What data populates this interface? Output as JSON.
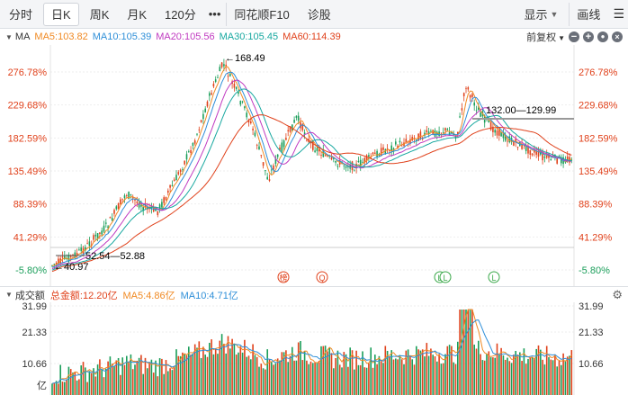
{
  "tabs": [
    {
      "label": "分时",
      "active": false
    },
    {
      "label": "日K",
      "active": true
    },
    {
      "label": "周K",
      "active": false
    },
    {
      "label": "月K",
      "active": false
    },
    {
      "label": "120分",
      "active": false
    },
    {
      "label": "•••",
      "active": false
    },
    {
      "label": "同花顺F10",
      "active": false
    },
    {
      "label": "诊股",
      "active": false
    }
  ],
  "right_tabs": {
    "display": "显示",
    "draw": "画线"
  },
  "ma_legend": {
    "title": "MA",
    "items": [
      {
        "label": "MA5:103.82",
        "color": "#f08a24"
      },
      {
        "label": "MA10:105.39",
        "color": "#2f8fd8"
      },
      {
        "label": "MA20:105.56",
        "color": "#c03ac0"
      },
      {
        "label": "MA30:105.45",
        "color": "#18a8a0"
      },
      {
        "label": "MA60:114.39",
        "color": "#e0421c"
      }
    ],
    "adjust": "前复权"
  },
  "y_axis_labels": [
    "276.78%",
    "229.68%",
    "182.59%",
    "135.49%",
    "88.39%",
    "41.29%",
    "-5.80%"
  ],
  "annotations": {
    "high": "168.49",
    "low": "40.97",
    "range_left": "52.54—52.88",
    "range_right": "132.00—129.99"
  },
  "event_markers": [
    {
      "label": "榜",
      "color": "#e0421c"
    },
    {
      "label": "Q",
      "color": "#e0421c"
    },
    {
      "label": "L",
      "color": "#3aa84a"
    },
    {
      "label": "L",
      "color": "#3aa84a"
    },
    {
      "label": "L",
      "color": "#3aa84a"
    }
  ],
  "volume_legend": {
    "title": "成交额",
    "total": "总金额:12.20亿",
    "ma5": "MA5:4.86亿",
    "ma10": "MA10:4.71亿",
    "total_color": "#e0421c",
    "ma5_color": "#f08a24",
    "ma10_color": "#2f8fd8"
  },
  "volume_axis_labels": [
    "31.99",
    "21.33",
    "10.66",
    "亿"
  ],
  "colors": {
    "up": "#e0421c",
    "down": "#1a9e5a"
  }
}
